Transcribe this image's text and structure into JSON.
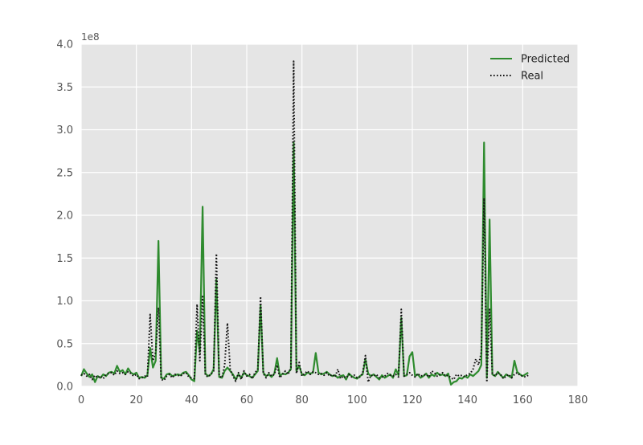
{
  "chart_data": {
    "type": "line",
    "title": "",
    "xlabel": "",
    "ylabel": "",
    "y_scale_label": "1e8",
    "xlim": [
      0,
      180
    ],
    "ylim": [
      0,
      4.0
    ],
    "x_ticks": [
      "0",
      "20",
      "40",
      "60",
      "80",
      "100",
      "120",
      "140",
      "160",
      "180"
    ],
    "y_ticks": [
      "0.0",
      "0.5",
      "1.0",
      "1.5",
      "2.0",
      "2.5",
      "3.0",
      "3.5",
      "4.0"
    ],
    "grid": true,
    "legend_position": "top-right",
    "series": [
      {
        "name": "Predicted",
        "color": "#2e8b2e",
        "style": "solid",
        "points": [
          [
            0,
            0.12
          ],
          [
            1,
            0.2
          ],
          [
            2,
            0.15
          ],
          [
            3,
            0.11
          ],
          [
            4,
            0.14
          ],
          [
            5,
            0.05
          ],
          [
            6,
            0.12
          ],
          [
            7,
            0.1
          ],
          [
            8,
            0.14
          ],
          [
            9,
            0.12
          ],
          [
            10,
            0.16
          ],
          [
            11,
            0.17
          ],
          [
            12,
            0.15
          ],
          [
            13,
            0.24
          ],
          [
            14,
            0.17
          ],
          [
            15,
            0.19
          ],
          [
            16,
            0.14
          ],
          [
            17,
            0.21
          ],
          [
            18,
            0.16
          ],
          [
            19,
            0.14
          ],
          [
            20,
            0.16
          ],
          [
            21,
            0.1
          ],
          [
            22,
            0.11
          ],
          [
            23,
            0.1
          ],
          [
            24,
            0.13
          ],
          [
            25,
            0.45
          ],
          [
            26,
            0.22
          ],
          [
            27,
            0.3
          ],
          [
            28,
            1.7
          ],
          [
            29,
            0.1
          ],
          [
            30,
            0.09
          ],
          [
            31,
            0.14
          ],
          [
            32,
            0.15
          ],
          [
            33,
            0.12
          ],
          [
            34,
            0.13
          ],
          [
            35,
            0.14
          ],
          [
            36,
            0.13
          ],
          [
            37,
            0.16
          ],
          [
            38,
            0.17
          ],
          [
            39,
            0.13
          ],
          [
            40,
            0.08
          ],
          [
            41,
            0.06
          ],
          [
            42,
            0.65
          ],
          [
            43,
            0.4
          ],
          [
            44,
            2.1
          ],
          [
            45,
            0.15
          ],
          [
            46,
            0.12
          ],
          [
            47,
            0.14
          ],
          [
            48,
            0.2
          ],
          [
            49,
            1.25
          ],
          [
            50,
            0.11
          ],
          [
            51,
            0.1
          ],
          [
            52,
            0.18
          ],
          [
            53,
            0.22
          ],
          [
            54,
            0.18
          ],
          [
            55,
            0.14
          ],
          [
            56,
            0.08
          ],
          [
            57,
            0.14
          ],
          [
            58,
            0.1
          ],
          [
            59,
            0.16
          ],
          [
            60,
            0.13
          ],
          [
            61,
            0.12
          ],
          [
            62,
            0.1
          ],
          [
            63,
            0.14
          ],
          [
            64,
            0.18
          ],
          [
            65,
            0.95
          ],
          [
            66,
            0.16
          ],
          [
            67,
            0.12
          ],
          [
            68,
            0.14
          ],
          [
            69,
            0.11
          ],
          [
            70,
            0.15
          ],
          [
            71,
            0.33
          ],
          [
            72,
            0.12
          ],
          [
            73,
            0.15
          ],
          [
            74,
            0.14
          ],
          [
            75,
            0.16
          ],
          [
            76,
            0.2
          ],
          [
            77,
            2.85
          ],
          [
            78,
            0.18
          ],
          [
            79,
            0.24
          ],
          [
            80,
            0.14
          ],
          [
            81,
            0.13
          ],
          [
            82,
            0.16
          ],
          [
            83,
            0.15
          ],
          [
            84,
            0.16
          ],
          [
            85,
            0.39
          ],
          [
            86,
            0.16
          ],
          [
            87,
            0.14
          ],
          [
            88,
            0.15
          ],
          [
            89,
            0.17
          ],
          [
            90,
            0.14
          ],
          [
            91,
            0.12
          ],
          [
            92,
            0.13
          ],
          [
            93,
            0.1
          ],
          [
            94,
            0.12
          ],
          [
            95,
            0.13
          ],
          [
            96,
            0.08
          ],
          [
            97,
            0.15
          ],
          [
            98,
            0.12
          ],
          [
            99,
            0.1
          ],
          [
            100,
            0.09
          ],
          [
            101,
            0.12
          ],
          [
            102,
            0.14
          ],
          [
            103,
            0.32
          ],
          [
            104,
            0.15
          ],
          [
            105,
            0.12
          ],
          [
            106,
            0.14
          ],
          [
            107,
            0.11
          ],
          [
            108,
            0.08
          ],
          [
            109,
            0.13
          ],
          [
            110,
            0.1
          ],
          [
            111,
            0.12
          ],
          [
            112,
            0.14
          ],
          [
            113,
            0.1
          ],
          [
            114,
            0.2
          ],
          [
            115,
            0.13
          ],
          [
            116,
            0.8
          ],
          [
            117,
            0.12
          ],
          [
            118,
            0.13
          ],
          [
            119,
            0.35
          ],
          [
            120,
            0.4
          ],
          [
            121,
            0.12
          ],
          [
            122,
            0.14
          ],
          [
            123,
            0.1
          ],
          [
            124,
            0.12
          ],
          [
            125,
            0.15
          ],
          [
            126,
            0.1
          ],
          [
            127,
            0.14
          ],
          [
            128,
            0.12
          ],
          [
            129,
            0.16
          ],
          [
            130,
            0.13
          ],
          [
            131,
            0.14
          ],
          [
            132,
            0.12
          ],
          [
            133,
            0.15
          ],
          [
            134,
            0.02
          ],
          [
            135,
            0.05
          ],
          [
            136,
            0.06
          ],
          [
            137,
            0.1
          ],
          [
            138,
            0.09
          ],
          [
            139,
            0.12
          ],
          [
            140,
            0.1
          ],
          [
            141,
            0.14
          ],
          [
            142,
            0.12
          ],
          [
            143,
            0.15
          ],
          [
            144,
            0.18
          ],
          [
            145,
            0.25
          ],
          [
            146,
            2.85
          ],
          [
            147,
            0.1
          ],
          [
            148,
            1.95
          ],
          [
            149,
            0.14
          ],
          [
            150,
            0.12
          ],
          [
            151,
            0.17
          ],
          [
            152,
            0.13
          ],
          [
            153,
            0.1
          ],
          [
            154,
            0.14
          ],
          [
            155,
            0.12
          ],
          [
            156,
            0.1
          ],
          [
            157,
            0.3
          ],
          [
            158,
            0.17
          ],
          [
            159,
            0.14
          ],
          [
            160,
            0.12
          ],
          [
            161,
            0.14
          ],
          [
            162,
            0.16
          ]
        ]
      },
      {
        "name": "Real",
        "color": "#111111",
        "style": "dotted",
        "points": [
          [
            0,
            0.13
          ],
          [
            1,
            0.15
          ],
          [
            2,
            0.12
          ],
          [
            3,
            0.14
          ],
          [
            4,
            0.08
          ],
          [
            5,
            0.13
          ],
          [
            6,
            0.1
          ],
          [
            7,
            0.12
          ],
          [
            8,
            0.09
          ],
          [
            9,
            0.14
          ],
          [
            10,
            0.15
          ],
          [
            11,
            0.16
          ],
          [
            12,
            0.13
          ],
          [
            13,
            0.18
          ],
          [
            14,
            0.15
          ],
          [
            15,
            0.16
          ],
          [
            16,
            0.14
          ],
          [
            17,
            0.17
          ],
          [
            18,
            0.15
          ],
          [
            19,
            0.12
          ],
          [
            20,
            0.14
          ],
          [
            21,
            0.09
          ],
          [
            22,
            0.1
          ],
          [
            23,
            0.12
          ],
          [
            24,
            0.11
          ],
          [
            25,
            0.84
          ],
          [
            26,
            0.3
          ],
          [
            27,
            0.4
          ],
          [
            28,
            0.92
          ],
          [
            29,
            0.08
          ],
          [
            30,
            0.07
          ],
          [
            31,
            0.12
          ],
          [
            32,
            0.14
          ],
          [
            33,
            0.1
          ],
          [
            34,
            0.14
          ],
          [
            35,
            0.13
          ],
          [
            36,
            0.12
          ],
          [
            37,
            0.15
          ],
          [
            38,
            0.16
          ],
          [
            39,
            0.11
          ],
          [
            40,
            0.1
          ],
          [
            41,
            0.09
          ],
          [
            42,
            0.96
          ],
          [
            43,
            0.3
          ],
          [
            44,
            1.05
          ],
          [
            45,
            0.13
          ],
          [
            46,
            0.11
          ],
          [
            47,
            0.14
          ],
          [
            48,
            0.18
          ],
          [
            49,
            1.55
          ],
          [
            50,
            0.12
          ],
          [
            51,
            0.1
          ],
          [
            52,
            0.25
          ],
          [
            53,
            0.74
          ],
          [
            54,
            0.2
          ],
          [
            55,
            0.12
          ],
          [
            56,
            0.06
          ],
          [
            57,
            0.16
          ],
          [
            58,
            0.08
          ],
          [
            59,
            0.18
          ],
          [
            60,
            0.12
          ],
          [
            61,
            0.14
          ],
          [
            62,
            0.09
          ],
          [
            63,
            0.16
          ],
          [
            64,
            0.2
          ],
          [
            65,
            1.05
          ],
          [
            66,
            0.15
          ],
          [
            67,
            0.1
          ],
          [
            68,
            0.16
          ],
          [
            69,
            0.12
          ],
          [
            70,
            0.14
          ],
          [
            71,
            0.25
          ],
          [
            72,
            0.1
          ],
          [
            73,
            0.14
          ],
          [
            74,
            0.18
          ],
          [
            75,
            0.14
          ],
          [
            76,
            0.22
          ],
          [
            77,
            3.8
          ],
          [
            78,
            0.15
          ],
          [
            79,
            0.28
          ],
          [
            80,
            0.12
          ],
          [
            81,
            0.15
          ],
          [
            82,
            0.18
          ],
          [
            83,
            0.14
          ],
          [
            84,
            0.17
          ],
          [
            85,
            0.16
          ],
          [
            86,
            0.14
          ],
          [
            87,
            0.15
          ],
          [
            88,
            0.13
          ],
          [
            89,
            0.16
          ],
          [
            90,
            0.12
          ],
          [
            91,
            0.14
          ],
          [
            92,
            0.11
          ],
          [
            93,
            0.2
          ],
          [
            94,
            0.09
          ],
          [
            95,
            0.12
          ],
          [
            96,
            0.1
          ],
          [
            97,
            0.14
          ],
          [
            98,
            0.11
          ],
          [
            99,
            0.13
          ],
          [
            100,
            0.1
          ],
          [
            101,
            0.11
          ],
          [
            102,
            0.15
          ],
          [
            103,
            0.36
          ],
          [
            104,
            0.05
          ],
          [
            105,
            0.13
          ],
          [
            106,
            0.12
          ],
          [
            107,
            0.14
          ],
          [
            108,
            0.1
          ],
          [
            109,
            0.11
          ],
          [
            110,
            0.12
          ],
          [
            111,
            0.15
          ],
          [
            112,
            0.13
          ],
          [
            113,
            0.12
          ],
          [
            114,
            0.14
          ],
          [
            115,
            0.11
          ],
          [
            116,
            0.9
          ],
          [
            117,
            0.12
          ],
          [
            118,
            0.14
          ],
          [
            119,
            0.16
          ],
          [
            120,
            0.13
          ],
          [
            121,
            0.11
          ],
          [
            122,
            0.15
          ],
          [
            123,
            0.12
          ],
          [
            124,
            0.13
          ],
          [
            125,
            0.14
          ],
          [
            126,
            0.11
          ],
          [
            127,
            0.18
          ],
          [
            128,
            0.16
          ],
          [
            129,
            0.12
          ],
          [
            130,
            0.14
          ],
          [
            131,
            0.16
          ],
          [
            132,
            0.12
          ],
          [
            133,
            0.13
          ],
          [
            134,
            0.1
          ],
          [
            135,
            0.08
          ],
          [
            136,
            0.14
          ],
          [
            137,
            0.12
          ],
          [
            138,
            0.13
          ],
          [
            139,
            0.11
          ],
          [
            140,
            0.14
          ],
          [
            141,
            0.15
          ],
          [
            142,
            0.2
          ],
          [
            143,
            0.32
          ],
          [
            144,
            0.25
          ],
          [
            145,
            0.4
          ],
          [
            146,
            2.2
          ],
          [
            147,
            0.05
          ],
          [
            148,
            0.9
          ],
          [
            149,
            0.15
          ],
          [
            150,
            0.12
          ],
          [
            151,
            0.16
          ],
          [
            152,
            0.14
          ],
          [
            153,
            0.09
          ],
          [
            154,
            0.12
          ],
          [
            155,
            0.14
          ],
          [
            156,
            0.1
          ],
          [
            157,
            0.14
          ],
          [
            158,
            0.16
          ],
          [
            159,
            0.13
          ],
          [
            160,
            0.12
          ],
          [
            161,
            0.11
          ],
          [
            162,
            0.13
          ]
        ]
      }
    ]
  }
}
